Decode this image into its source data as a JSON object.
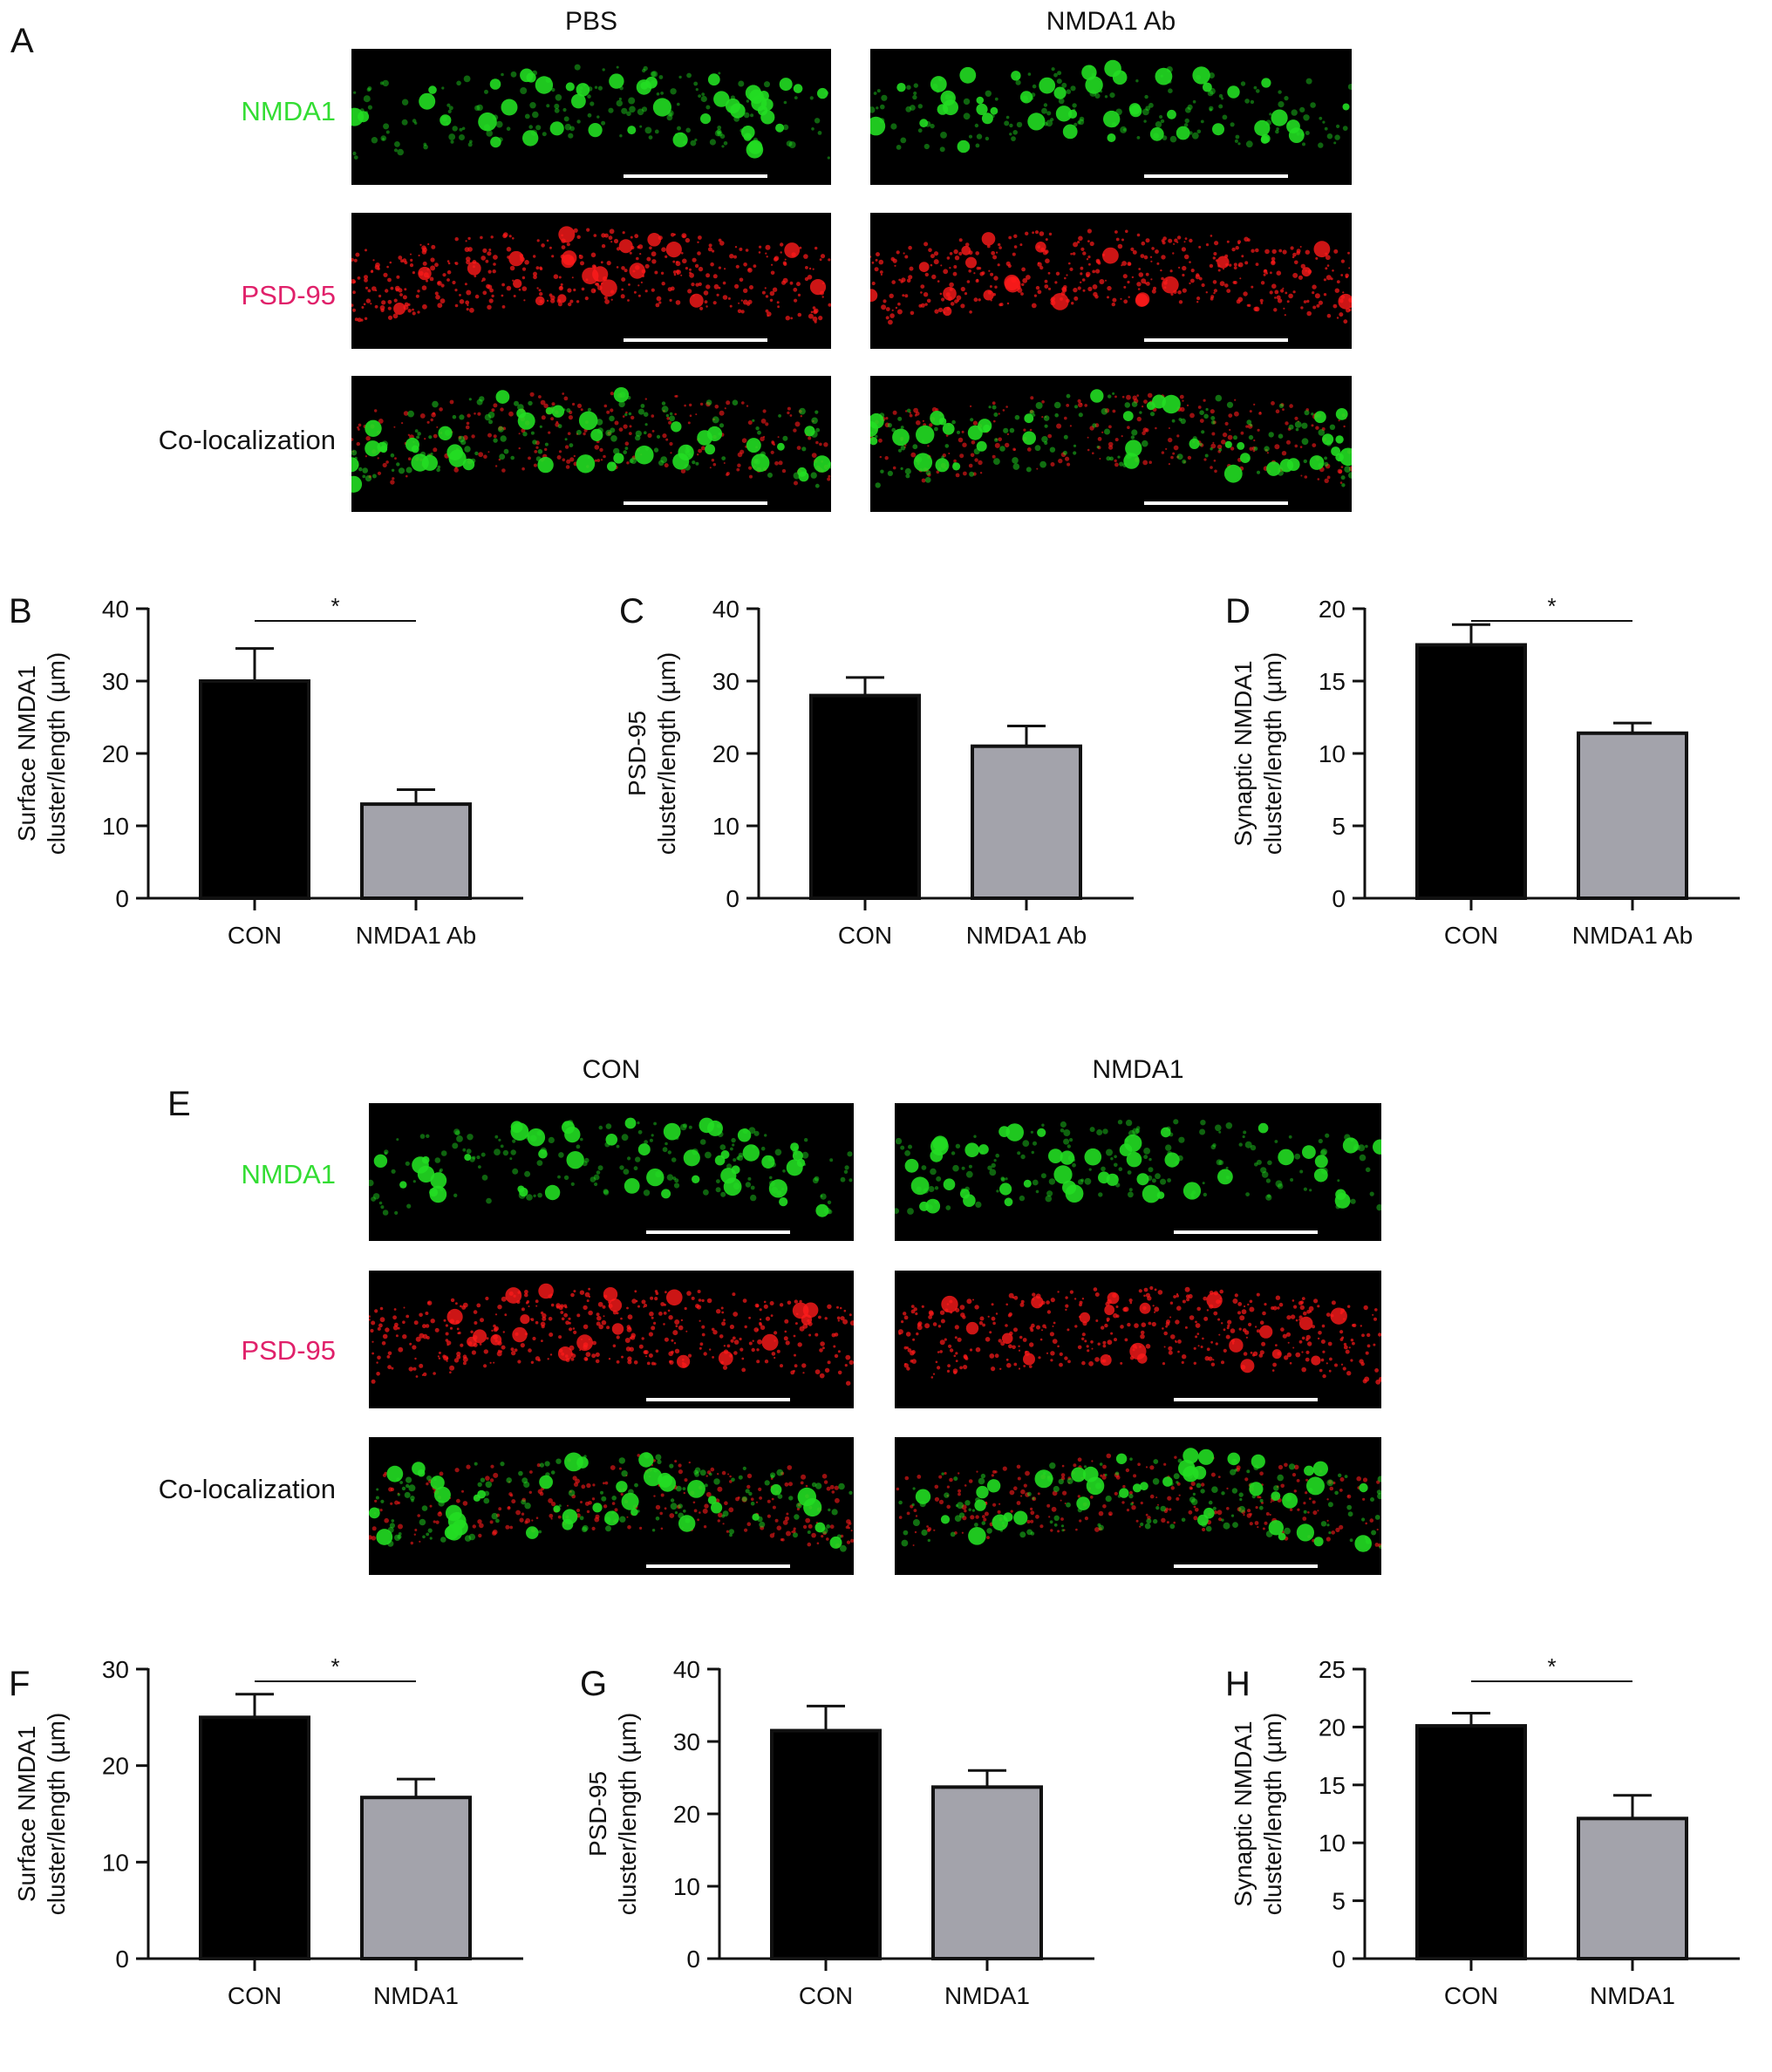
{
  "panels": {
    "A": {
      "letter": "A",
      "columns": [
        "PBS",
        "NMDA1 Ab"
      ],
      "rows": [
        "NMDA1",
        "PSD-95",
        "Co-localization"
      ]
    },
    "E": {
      "letter": "E",
      "columns": [
        "CON",
        "NMDA1"
      ],
      "rows": [
        "NMDA1",
        "PSD-95",
        "Co-localization"
      ]
    }
  },
  "colors": {
    "nmda_label": "#33dd33",
    "psd_label": "#e0206a",
    "con_bar": "#000000",
    "treat_bar": "#a3a3ab",
    "green_signal": "#22dd22",
    "red_signal": "#ff1a1a"
  },
  "chart_data": [
    {
      "id": "B",
      "type": "bar",
      "letter": "B",
      "categories": [
        "CON",
        "NMDA1 Ab"
      ],
      "values": [
        30,
        13
      ],
      "errors": [
        4.5,
        2
      ],
      "ylabel": [
        "Surface NMDA1",
        "cluster/length (µm)"
      ],
      "ylim": [
        0,
        40
      ],
      "yticks": [
        0,
        10,
        20,
        30,
        40
      ],
      "significance": "*"
    },
    {
      "id": "C",
      "type": "bar",
      "letter": "C",
      "categories": [
        "CON",
        "NMDA1 Ab"
      ],
      "values": [
        28,
        21
      ],
      "errors": [
        2.5,
        2.8
      ],
      "ylabel": [
        "PSD-95",
        "cluster/length (µm)"
      ],
      "ylim": [
        0,
        40
      ],
      "yticks": [
        0,
        10,
        20,
        30,
        40
      ],
      "significance": ""
    },
    {
      "id": "D",
      "type": "bar",
      "letter": "D",
      "categories": [
        "CON",
        "NMDA1 Ab"
      ],
      "values": [
        17.5,
        11.4
      ],
      "errors": [
        1.4,
        0.7
      ],
      "ylabel": [
        "Synaptic NMDA1",
        "cluster/length (µm)"
      ],
      "ylim": [
        0,
        20
      ],
      "yticks": [
        0,
        5,
        10,
        15,
        20
      ],
      "significance": "*"
    },
    {
      "id": "F",
      "type": "bar",
      "letter": "F",
      "categories": [
        "CON",
        "NMDA1"
      ],
      "values": [
        25,
        16.7
      ],
      "errors": [
        2.4,
        1.9
      ],
      "ylabel": [
        "Surface NMDA1",
        "cluster/length (µm)"
      ],
      "ylim": [
        0,
        30
      ],
      "yticks": [
        0,
        10,
        20,
        30
      ],
      "significance": "*"
    },
    {
      "id": "G",
      "type": "bar",
      "letter": "G",
      "categories": [
        "CON",
        "NMDA1"
      ],
      "values": [
        31.5,
        23.7
      ],
      "errors": [
        3.4,
        2.3
      ],
      "ylabel": [
        "PSD-95",
        "cluster/length (µm)"
      ],
      "ylim": [
        0,
        40
      ],
      "yticks": [
        0,
        10,
        20,
        30,
        40
      ],
      "significance": ""
    },
    {
      "id": "H",
      "type": "bar",
      "letter": "H",
      "categories": [
        "CON",
        "NMDA1"
      ],
      "values": [
        20.1,
        12.1
      ],
      "errors": [
        1.1,
        2.0
      ],
      "ylabel": [
        "Synaptic NMDA1",
        "cluster/length (µm)"
      ],
      "ylim": [
        0,
        25
      ],
      "yticks": [
        0,
        5,
        10,
        15,
        20,
        25
      ],
      "significance": "*"
    }
  ]
}
